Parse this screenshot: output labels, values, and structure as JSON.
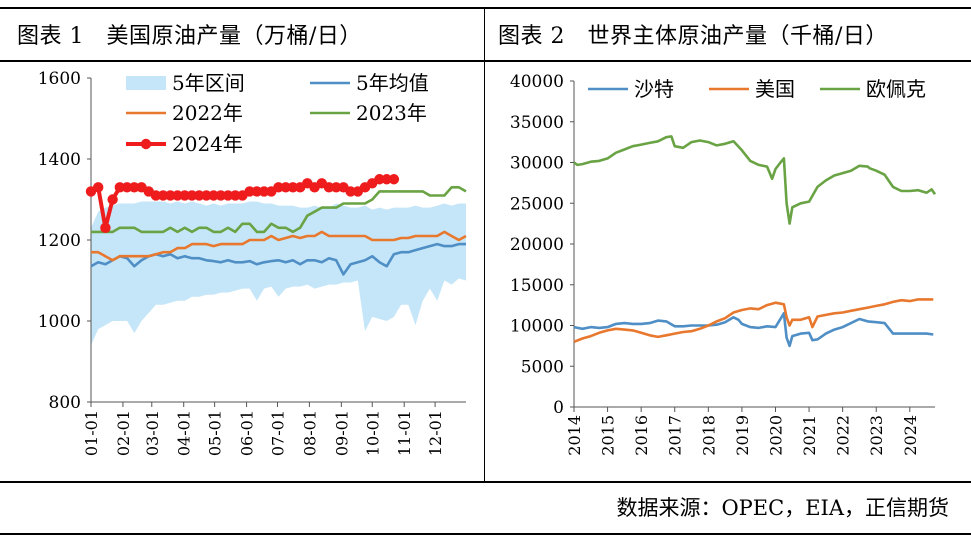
{
  "figure1": {
    "title": "图表 1　美国原油产量（万桶/日）"
  },
  "figure2": {
    "title": "图表 2　世界主体原油产量（千桶/日）"
  },
  "source": "数据来源：OPEC，EIA，正信期货",
  "chart_data": [
    {
      "type": "line",
      "title": "图表 1　美国原油产量（万桶/日）",
      "ylim": [
        800,
        1600
      ],
      "yticks": [
        800,
        1000,
        1200,
        1400,
        1600
      ],
      "x_categories": [
        "01-01",
        "02-01",
        "03-01",
        "04-01",
        "05-01",
        "06-01",
        "07-01",
        "08-01",
        "09-01",
        "10-01",
        "11-01",
        "12-01"
      ],
      "x_range": [
        1,
        365
      ],
      "legend_position": "top",
      "band": {
        "name": "5年区间",
        "color": "#c5e6f8",
        "x": [
          1,
          8,
          15,
          22,
          29,
          36,
          43,
          50,
          57,
          64,
          71,
          78,
          85,
          92,
          99,
          106,
          113,
          120,
          127,
          134,
          141,
          148,
          155,
          162,
          169,
          176,
          183,
          190,
          197,
          204,
          211,
          218,
          225,
          232,
          239,
          246,
          253,
          260,
          267,
          274,
          281,
          288,
          295,
          302,
          309,
          316,
          323,
          330,
          337,
          344,
          351,
          358,
          365
        ],
        "upper": [
          1230,
          1270,
          1280,
          1285,
          1290,
          1290,
          1290,
          1295,
          1295,
          1295,
          1295,
          1290,
          1295,
          1290,
          1295,
          1290,
          1285,
          1290,
          1285,
          1290,
          1290,
          1290,
          1295,
          1295,
          1290,
          1290,
          1285,
          1285,
          1285,
          1280,
          1280,
          1285,
          1280,
          1280,
          1290,
          1285,
          1280,
          1280,
          1285,
          1275,
          1280,
          1275,
          1280,
          1280,
          1280,
          1285,
          1280,
          1280,
          1285,
          1290,
          1285,
          1290,
          1290
        ],
        "lower": [
          940,
          980,
          990,
          1000,
          1000,
          1000,
          970,
          1000,
          1020,
          1040,
          1040,
          1045,
          1050,
          1050,
          1060,
          1060,
          1065,
          1065,
          1070,
          1070,
          1075,
          1080,
          1080,
          1050,
          1080,
          1085,
          1060,
          1080,
          1085,
          1085,
          1090,
          1080,
          1085,
          1090,
          1090,
          1095,
          1095,
          1100,
          975,
          1010,
          1005,
          1000,
          1010,
          1040,
          1040,
          990,
          1050,
          1080,
          1050,
          1100,
          1090,
          1105,
          1100
        ]
      },
      "series": [
        {
          "name": "5年均值",
          "color": "#4f8fc6",
          "x": [
            1,
            8,
            15,
            22,
            29,
            36,
            43,
            50,
            57,
            64,
            71,
            78,
            85,
            92,
            99,
            106,
            113,
            120,
            127,
            134,
            141,
            148,
            155,
            162,
            169,
            176,
            183,
            190,
            197,
            204,
            211,
            218,
            225,
            232,
            239,
            246,
            253,
            260,
            267,
            274,
            281,
            288,
            295,
            302,
            309,
            316,
            323,
            330,
            337,
            344,
            351,
            358,
            365
          ],
          "y": [
            1135,
            1145,
            1140,
            1150,
            1160,
            1155,
            1135,
            1150,
            1160,
            1165,
            1160,
            1165,
            1155,
            1160,
            1155,
            1155,
            1150,
            1148,
            1145,
            1150,
            1145,
            1145,
            1148,
            1140,
            1145,
            1148,
            1150,
            1145,
            1150,
            1140,
            1150,
            1150,
            1145,
            1155,
            1150,
            1115,
            1140,
            1145,
            1150,
            1160,
            1145,
            1135,
            1165,
            1170,
            1170,
            1175,
            1180,
            1185,
            1190,
            1185,
            1185,
            1190,
            1190
          ]
        },
        {
          "name": "2022年",
          "color": "#e8782e",
          "x": [
            1,
            8,
            15,
            22,
            29,
            36,
            43,
            50,
            57,
            64,
            71,
            78,
            85,
            92,
            99,
            106,
            113,
            120,
            127,
            134,
            141,
            148,
            155,
            162,
            169,
            176,
            183,
            190,
            197,
            204,
            211,
            218,
            225,
            232,
            239,
            246,
            253,
            260,
            267,
            274,
            281,
            288,
            295,
            302,
            309,
            316,
            323,
            330,
            337,
            344,
            351,
            358,
            365
          ],
          "y": [
            1170,
            1170,
            1160,
            1150,
            1160,
            1160,
            1160,
            1160,
            1160,
            1165,
            1170,
            1170,
            1180,
            1180,
            1190,
            1190,
            1190,
            1185,
            1190,
            1190,
            1190,
            1190,
            1200,
            1200,
            1200,
            1210,
            1200,
            1205,
            1210,
            1205,
            1210,
            1210,
            1220,
            1210,
            1210,
            1210,
            1210,
            1210,
            1210,
            1200,
            1200,
            1200,
            1200,
            1205,
            1205,
            1210,
            1210,
            1210,
            1210,
            1220,
            1210,
            1200,
            1210
          ]
        },
        {
          "name": "2023年",
          "color": "#69a344",
          "x": [
            1,
            8,
            15,
            22,
            29,
            36,
            43,
            50,
            57,
            64,
            71,
            78,
            85,
            92,
            99,
            106,
            113,
            120,
            127,
            134,
            141,
            148,
            155,
            162,
            169,
            176,
            183,
            190,
            197,
            204,
            211,
            218,
            225,
            232,
            239,
            246,
            253,
            260,
            267,
            274,
            281,
            288,
            295,
            302,
            309,
            316,
            323,
            330,
            337,
            344,
            351,
            358,
            365
          ],
          "y": [
            1220,
            1220,
            1220,
            1220,
            1230,
            1230,
            1230,
            1220,
            1220,
            1220,
            1220,
            1230,
            1220,
            1230,
            1220,
            1230,
            1230,
            1220,
            1220,
            1230,
            1220,
            1240,
            1240,
            1220,
            1220,
            1240,
            1230,
            1230,
            1220,
            1230,
            1260,
            1270,
            1280,
            1280,
            1280,
            1290,
            1290,
            1290,
            1290,
            1300,
            1320,
            1320,
            1320,
            1320,
            1320,
            1320,
            1320,
            1310,
            1310,
            1310,
            1330,
            1330,
            1320
          ]
        },
        {
          "name": "2024年",
          "color": "#ee1c1c",
          "markers": true,
          "x": [
            1,
            8,
            15,
            22,
            29,
            36,
            43,
            50,
            57,
            64,
            71,
            78,
            85,
            92,
            99,
            106,
            113,
            120,
            127,
            134,
            141,
            148,
            155,
            162,
            169,
            176,
            183,
            190,
            197,
            204,
            211,
            218,
            225,
            232,
            239,
            246,
            253,
            260,
            267,
            274,
            281,
            288,
            295
          ],
          "y": [
            1320,
            1330,
            1230,
            1300,
            1330,
            1330,
            1330,
            1330,
            1320,
            1310,
            1310,
            1310,
            1310,
            1310,
            1310,
            1310,
            1310,
            1310,
            1310,
            1310,
            1310,
            1310,
            1320,
            1320,
            1320,
            1320,
            1330,
            1330,
            1330,
            1330,
            1340,
            1330,
            1340,
            1330,
            1330,
            1330,
            1320,
            1320,
            1330,
            1340,
            1350,
            1350,
            1350
          ]
        }
      ]
    },
    {
      "type": "line",
      "title": "图表 2　世界主体原油产量（千桶/日）",
      "ylim": [
        0,
        40000
      ],
      "yticks": [
        0,
        5000,
        10000,
        15000,
        20000,
        25000,
        30000,
        35000,
        40000
      ],
      "x_categories": [
        "2014",
        "2015",
        "2016",
        "2017",
        "2018",
        "2019",
        "2020",
        "2021",
        "2022",
        "2023",
        "2024"
      ],
      "x_range": [
        2014,
        2024.75
      ],
      "legend_position": "top",
      "series": [
        {
          "name": "沙特",
          "color": "#4f8fc6",
          "x": [
            2014,
            2014.25,
            2014.5,
            2014.75,
            2015,
            2015.25,
            2015.5,
            2015.75,
            2016,
            2016.25,
            2016.5,
            2016.75,
            2017,
            2017.25,
            2017.5,
            2017.75,
            2018,
            2018.25,
            2018.5,
            2018.75,
            2018.9,
            2019,
            2019.25,
            2019.5,
            2019.75,
            2020,
            2020.25,
            2020.33,
            2020.42,
            2020.5,
            2020.75,
            2021,
            2021.1,
            2021.25,
            2021.5,
            2021.75,
            2022,
            2022.25,
            2022.5,
            2022.75,
            2023,
            2023.25,
            2023.5,
            2023.75,
            2024,
            2024.25,
            2024.5,
            2024.7
          ],
          "y": [
            9800,
            9600,
            9800,
            9700,
            9800,
            10200,
            10300,
            10200,
            10200,
            10300,
            10600,
            10500,
            9900,
            9900,
            10000,
            10000,
            10000,
            10100,
            10400,
            11000,
            10700,
            10200,
            9800,
            9700,
            9900,
            9800,
            11500,
            8500,
            7500,
            8700,
            9000,
            9100,
            8200,
            8300,
            9000,
            9500,
            9800,
            10300,
            10800,
            10500,
            10400,
            10300,
            9000,
            9000,
            9000,
            9000,
            9000,
            8900
          ]
        },
        {
          "name": "美国",
          "color": "#e8782e",
          "x": [
            2014,
            2014.25,
            2014.5,
            2014.75,
            2015,
            2015.25,
            2015.5,
            2015.75,
            2016,
            2016.25,
            2016.5,
            2016.75,
            2017,
            2017.25,
            2017.5,
            2017.75,
            2018,
            2018.25,
            2018.5,
            2018.75,
            2019,
            2019.25,
            2019.5,
            2019.75,
            2020,
            2020.25,
            2020.33,
            2020.42,
            2020.5,
            2020.75,
            2021,
            2021.1,
            2021.25,
            2021.5,
            2021.75,
            2022,
            2022.25,
            2022.5,
            2022.75,
            2023,
            2023.25,
            2023.5,
            2023.75,
            2024,
            2024.25,
            2024.5,
            2024.7
          ],
          "y": [
            8000,
            8400,
            8700,
            9100,
            9400,
            9600,
            9500,
            9400,
            9100,
            8800,
            8600,
            8800,
            9000,
            9200,
            9300,
            9600,
            10000,
            10500,
            10900,
            11600,
            11900,
            12100,
            12000,
            12500,
            12800,
            12600,
            11000,
            10000,
            10700,
            10700,
            11000,
            9800,
            11100,
            11300,
            11500,
            11600,
            11800,
            12000,
            12200,
            12400,
            12600,
            12900,
            13100,
            13000,
            13200,
            13200,
            13200
          ]
        },
        {
          "name": "欧佩克",
          "color": "#69a344",
          "x": [
            2014,
            2014.1,
            2014.25,
            2014.5,
            2014.75,
            2015,
            2015.25,
            2015.5,
            2015.75,
            2016,
            2016.25,
            2016.5,
            2016.75,
            2016.9,
            2017,
            2017.25,
            2017.5,
            2017.75,
            2018,
            2018.25,
            2018.5,
            2018.75,
            2019,
            2019.25,
            2019.5,
            2019.75,
            2019.9,
            2020,
            2020.15,
            2020.25,
            2020.33,
            2020.42,
            2020.5,
            2020.75,
            2021,
            2021.25,
            2021.5,
            2021.75,
            2022,
            2022.25,
            2022.5,
            2022.75,
            2022.8,
            2023,
            2023.25,
            2023.5,
            2023.75,
            2024,
            2024.25,
            2024.5,
            2024.65,
            2024.75
          ],
          "y": [
            30000,
            29700,
            29800,
            30100,
            30200,
            30500,
            31200,
            31600,
            32000,
            32200,
            32400,
            32600,
            33100,
            33200,
            32000,
            31800,
            32500,
            32700,
            32500,
            32100,
            32300,
            32600,
            31500,
            30200,
            29700,
            29500,
            28000,
            29200,
            30000,
            30500,
            25000,
            22500,
            24500,
            25000,
            25200,
            27000,
            27800,
            28400,
            28700,
            29000,
            29600,
            29500,
            29300,
            29000,
            28500,
            27000,
            26500,
            26500,
            26600,
            26300,
            26700,
            26100
          ]
        }
      ]
    }
  ]
}
